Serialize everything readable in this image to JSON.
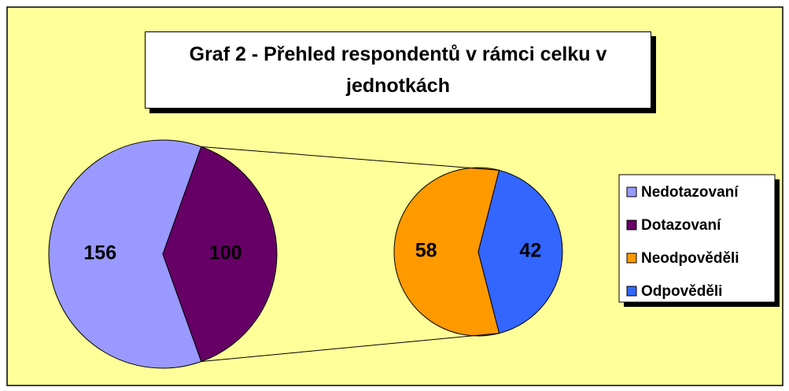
{
  "chart_data": {
    "type": "pie-of-pie",
    "title": "Graf 2 - Přehled respondentů v rámci celku v jednotkách",
    "categories": [
      "Nedotazovaní",
      "Dotazovaní",
      "Neodpověděli",
      "Odpověděli"
    ],
    "values": [
      156,
      100,
      58,
      42
    ],
    "colors": [
      "#9999ff",
      "#660066",
      "#ff9900",
      "#3366ff"
    ],
    "legend": "right"
  }
}
